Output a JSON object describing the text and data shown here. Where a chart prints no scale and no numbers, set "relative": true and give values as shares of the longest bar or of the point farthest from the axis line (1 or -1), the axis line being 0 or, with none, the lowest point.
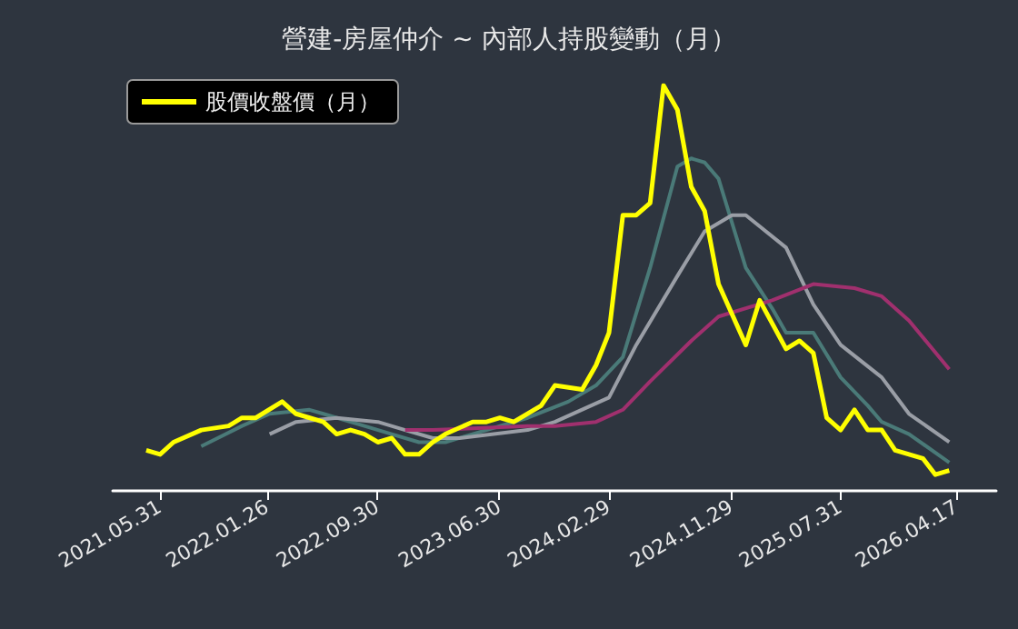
{
  "chart_data": {
    "type": "line",
    "title": "營建-房屋仲介 ~ 內部人持股變動（月）",
    "relative": true,
    "legend": "top left",
    "grid": false,
    "marker": "none",
    "line_style": "solid",
    "xlim": [
      "2021-02-15",
      "2026-07-15"
    ],
    "xticks": [
      {
        "value": "2021-05-31",
        "label": "2021.05.31"
      },
      {
        "value": "2022-01-26",
        "label": "2022.01.26"
      },
      {
        "value": "2022-09-30",
        "label": "2022.09.30"
      },
      {
        "value": "2023-06-30",
        "label": "2023.06.30"
      },
      {
        "value": "2024-02-29",
        "label": "2024.02.29"
      },
      {
        "value": "2024-11-29",
        "label": "2024.11.29"
      },
      {
        "value": "2025-07-31",
        "label": "2025.07.31"
      },
      {
        "value": "2026-04-17",
        "label": "2026.04.17"
      }
    ],
    "series": [
      {
        "name": "股價收盤價（月）",
        "color": "#ffff00",
        "x": [
          "2021-05",
          "2021-06",
          "2021-07",
          "2021-09",
          "2021-11",
          "2021-12",
          "2022-01",
          "2022-03",
          "2022-04",
          "2022-06",
          "2022-07",
          "2022-08",
          "2022-09",
          "2022-10",
          "2022-11",
          "2022-12",
          "2023-01",
          "2023-02",
          "2023-03",
          "2023-05",
          "2023-06",
          "2023-07",
          "2023-08",
          "2023-10",
          "2023-11",
          "2024-01",
          "2024-02",
          "2024-03",
          "2024-04",
          "2024-05",
          "2024-06",
          "2024-07",
          "2024-08",
          "2024-09",
          "2024-10",
          "2024-11",
          "2025-01",
          "2025-02",
          "2025-04",
          "2025-05",
          "2025-06",
          "2025-07",
          "2025-08",
          "2025-09",
          "2025-10",
          "2025-11",
          "2025-12",
          "2026-02",
          "2026-03",
          "2026-04"
        ],
        "values": [
          0.1,
          0.09,
          0.12,
          0.15,
          0.16,
          0.18,
          0.18,
          0.22,
          0.19,
          0.17,
          0.14,
          0.15,
          0.14,
          0.12,
          0.13,
          0.09,
          0.09,
          0.12,
          0.14,
          0.17,
          0.17,
          0.18,
          0.17,
          0.21,
          0.26,
          0.25,
          0.31,
          0.39,
          0.68,
          0.68,
          0.71,
          1.0,
          0.94,
          0.75,
          0.69,
          0.51,
          0.36,
          0.47,
          0.35,
          0.37,
          0.34,
          0.18,
          0.15,
          0.2,
          0.15,
          0.15,
          0.1,
          0.08,
          0.04,
          0.05
        ]
      },
      {
        "color": "#4a7a78",
        "x": [
          "2021-09",
          "2021-12",
          "2022-02",
          "2022-05",
          "2022-06",
          "2022-09",
          "2022-11",
          "2023-01",
          "2023-03",
          "2023-05",
          "2023-09",
          "2023-12",
          "2024-02",
          "2024-04",
          "2024-06",
          "2024-08",
          "2024-09",
          "2024-10",
          "2024-11",
          "2025-01",
          "2025-03",
          "2025-04",
          "2025-06",
          "2025-08",
          "2025-10",
          "2025-11",
          "2026-01",
          "2026-04"
        ],
        "values": [
          0.11,
          0.16,
          0.19,
          0.2,
          0.19,
          0.16,
          0.14,
          0.12,
          0.12,
          0.14,
          0.18,
          0.22,
          0.26,
          0.33,
          0.55,
          0.8,
          0.82,
          0.81,
          0.77,
          0.55,
          0.45,
          0.39,
          0.39,
          0.28,
          0.21,
          0.17,
          0.14,
          0.07
        ]
      },
      {
        "color": "#9a9ea6",
        "x": [
          "2022-02",
          "2022-04",
          "2022-07",
          "2022-10",
          "2022-12",
          "2023-02",
          "2023-04",
          "2023-09",
          "2023-11",
          "2024-03",
          "2024-05",
          "2024-08",
          "2024-10",
          "2024-12",
          "2025-01",
          "2025-04",
          "2025-06",
          "2025-08",
          "2025-11",
          "2026-01",
          "2026-04"
        ],
        "values": [
          0.14,
          0.17,
          0.18,
          0.17,
          0.15,
          0.13,
          0.13,
          0.15,
          0.17,
          0.23,
          0.36,
          0.53,
          0.64,
          0.68,
          0.68,
          0.6,
          0.46,
          0.36,
          0.28,
          0.19,
          0.12
        ]
      },
      {
        "color": "#a0306e",
        "x": [
          "2022-12",
          "2023-02",
          "2023-09",
          "2023-11",
          "2024-02",
          "2024-04",
          "2024-06",
          "2024-09",
          "2024-11",
          "2025-03",
          "2025-06",
          "2025-09",
          "2025-11",
          "2026-01",
          "2026-04"
        ],
        "values": [
          0.15,
          0.15,
          0.16,
          0.16,
          0.17,
          0.2,
          0.27,
          0.37,
          0.43,
          0.47,
          0.51,
          0.5,
          0.48,
          0.42,
          0.3
        ]
      }
    ]
  }
}
